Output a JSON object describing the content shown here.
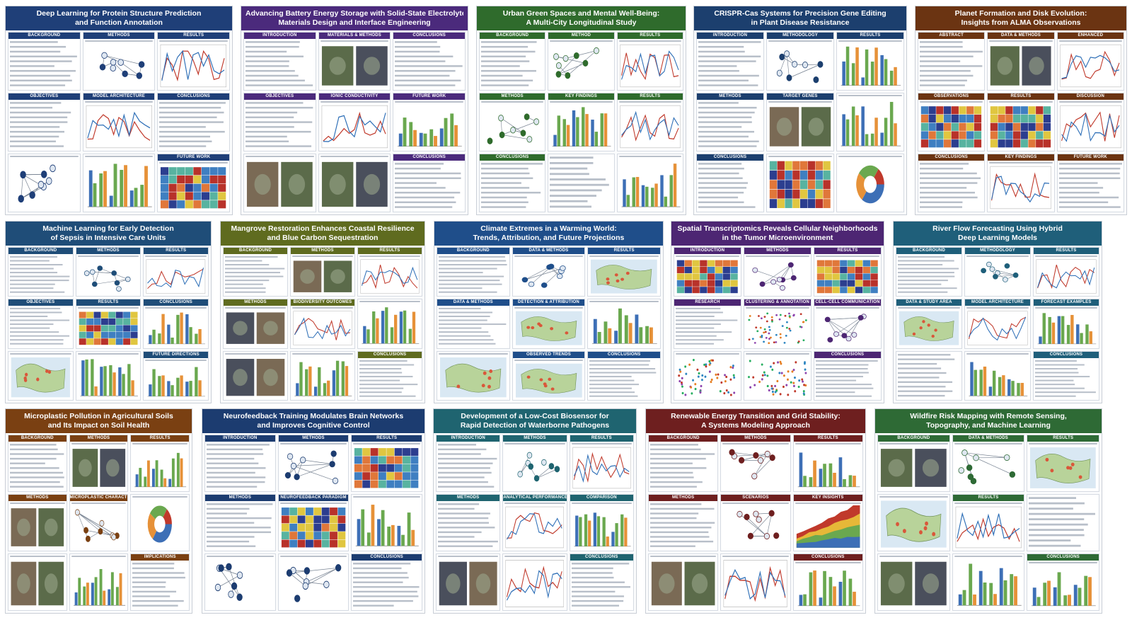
{
  "posters": [
    {
      "title_lines": [
        "Deep Learning for Protein Structure Prediction",
        "and Function Annotation"
      ],
      "color": "#1f3f78",
      "columns": [
        [
          {
            "h": "BACKGROUND",
            "f": "text"
          },
          {
            "h": "OBJECTIVES",
            "f": "text"
          },
          {
            "h": "",
            "f": "network"
          }
        ],
        [
          {
            "h": "METHODS",
            "f": "network"
          },
          {
            "h": "MODEL ARCHITECTURE",
            "f": "line"
          },
          {
            "h": "",
            "f": "bar"
          }
        ],
        [
          {
            "h": "RESULTS",
            "f": "line"
          },
          {
            "h": "CONCLUSIONS",
            "f": "text"
          },
          {
            "h": "FUTURE WORK",
            "f": "heat"
          }
        ]
      ]
    },
    {
      "title_lines": [
        "Advancing Battery Energy Storage with Solid-State Electrolytes:",
        "Materials Design and Interface Engineering"
      ],
      "color": "#4b2a7c",
      "columns": [
        [
          {
            "h": "INTRODUCTION",
            "f": "text"
          },
          {
            "h": "OBJECTIVES",
            "f": "text"
          },
          {
            "h": "",
            "f": "photo"
          }
        ],
        [
          {
            "h": "MATERIALS & METHODS",
            "f": "photo"
          },
          {
            "h": "IONIC CONDUCTIVITY",
            "f": "line"
          },
          {
            "h": "",
            "f": "photo"
          }
        ],
        [
          {
            "h": "CONCLUSIONS",
            "f": "text"
          },
          {
            "h": "FUTURE WORK",
            "f": "bar"
          },
          {
            "h": "CONCLUSIONS",
            "f": "text"
          }
        ]
      ]
    },
    {
      "title_lines": [
        "Urban Green Spaces and Mental Well-Being:",
        "A Multi-City Longitudinal Study"
      ],
      "color": "#2f6b2c",
      "columns": [
        [
          {
            "h": "BACKGROUND",
            "f": "text"
          },
          {
            "h": "METHODS",
            "f": "network"
          },
          {
            "h": "CONCLUSIONS",
            "f": "text"
          }
        ],
        [
          {
            "h": "METHOD",
            "f": "network"
          },
          {
            "h": "KEY FINDINGS",
            "f": "bar"
          },
          {
            "h": "",
            "f": "text"
          }
        ],
        [
          {
            "h": "RESULTS",
            "f": "line"
          },
          {
            "h": "RESULTS",
            "f": "line"
          },
          {
            "h": "",
            "f": "bar"
          }
        ]
      ]
    },
    {
      "title_lines": [
        "CRISPR-Cas Systems for Precision Gene Editing",
        "in Plant Disease Resistance"
      ],
      "color": "#1c3f6e",
      "columns": [
        [
          {
            "h": "INTRODUCTION",
            "f": "text"
          },
          {
            "h": "METHODS",
            "f": "text"
          },
          {
            "h": "CONCLUSIONS",
            "f": "text"
          }
        ],
        [
          {
            "h": "METHODOLOGY",
            "f": "network"
          },
          {
            "h": "TARGET GENES",
            "f": "photo"
          },
          {
            "h": "",
            "f": "heat"
          }
        ],
        [
          {
            "h": "RESULTS",
            "f": "bar"
          },
          {
            "h": "",
            "f": "bar"
          },
          {
            "h": "",
            "f": "donut"
          }
        ]
      ]
    },
    {
      "title_lines": [
        "Planet Formation and Disk Evolution:",
        "Insights from ALMA Observations"
      ],
      "color": "#6b3412",
      "columns": [
        [
          {
            "h": "ABSTRACT",
            "f": "text"
          },
          {
            "h": "OBSERVATIONS",
            "f": "heat"
          },
          {
            "h": "CONCLUSIONS",
            "f": "text"
          }
        ],
        [
          {
            "h": "DATA & METHODS",
            "f": "photo"
          },
          {
            "h": "RESULTS",
            "f": "heat"
          },
          {
            "h": "KEY FINDINGS",
            "f": "line"
          }
        ],
        [
          {
            "h": "ENHANCED",
            "f": "line"
          },
          {
            "h": "DISCUSSION",
            "f": "line"
          },
          {
            "h": "FUTURE WORK",
            "f": "text"
          }
        ]
      ]
    },
    {
      "title_lines": [
        "Machine Learning for Early Detection",
        "of Sepsis in Intensive Care Units"
      ],
      "color": "#1f4d78",
      "columns": [
        [
          {
            "h": "BACKGROUND",
            "f": "text"
          },
          {
            "h": "OBJECTIVES",
            "f": "text"
          },
          {
            "h": "",
            "f": "map"
          }
        ],
        [
          {
            "h": "METHODS",
            "f": "network"
          },
          {
            "h": "RESULTS",
            "f": "heat"
          },
          {
            "h": "",
            "f": "bar"
          }
        ],
        [
          {
            "h": "RESULTS",
            "f": "line"
          },
          {
            "h": "CONCLUSIONS",
            "f": "bar"
          },
          {
            "h": "FUTURE DIRECTIONS",
            "f": "bar"
          }
        ]
      ]
    },
    {
      "title_lines": [
        "Mangrove Restoration Enhances Coastal Resilience",
        "and Blue Carbon Sequestration"
      ],
      "color": "#5f6b1f",
      "columns": [
        [
          {
            "h": "BACKGROUND",
            "f": "text"
          },
          {
            "h": "METHODS",
            "f": "photo"
          },
          {
            "h": "",
            "f": "photo"
          }
        ],
        [
          {
            "h": "METHODS",
            "f": "photo"
          },
          {
            "h": "BIODIVERSITY OUTCOMES",
            "f": "line"
          },
          {
            "h": "",
            "f": "bar"
          }
        ],
        [
          {
            "h": "RESULTS",
            "f": "line"
          },
          {
            "h": "",
            "f": "bar"
          },
          {
            "h": "CONCLUSIONS",
            "f": "text"
          }
        ]
      ]
    },
    {
      "title_lines": [
        "Climate Extremes in a Warming World:",
        "Trends, Attribution, and Future Projections"
      ],
      "color": "#1f4e8a",
      "columns": [
        [
          {
            "h": "BACKGROUND",
            "f": "text"
          },
          {
            "h": "DATA & METHODS",
            "f": "text"
          },
          {
            "h": "",
            "f": "map"
          }
        ],
        [
          {
            "h": "DATA & METHODS",
            "f": "network"
          },
          {
            "h": "DETECTION & ATTRIBUTION",
            "f": "map"
          },
          {
            "h": "OBSERVED TRENDS",
            "f": "map"
          }
        ],
        [
          {
            "h": "RESULTS",
            "f": "map"
          },
          {
            "h": "",
            "f": "bar"
          },
          {
            "h": "CONCLUSIONS",
            "f": "text"
          }
        ]
      ]
    },
    {
      "title_lines": [
        "Spatial Transcriptomics Reveals Cellular Neighborhoods",
        "in the Tumor Microenvironment"
      ],
      "color": "#4d2673",
      "columns": [
        [
          {
            "h": "INTRODUCTION",
            "f": "heat"
          },
          {
            "h": "RESEARCH",
            "f": "text"
          },
          {
            "h": "",
            "f": "scatter"
          }
        ],
        [
          {
            "h": "METHODS",
            "f": "network"
          },
          {
            "h": "CLUSTERING & ANNOTATION",
            "f": "scatter"
          },
          {
            "h": "",
            "f": "scatter"
          }
        ],
        [
          {
            "h": "RESULTS",
            "f": "heat"
          },
          {
            "h": "CELL-CELL COMMUNICATION",
            "f": "network"
          },
          {
            "h": "CONCLUSIONS",
            "f": "text"
          }
        ]
      ]
    },
    {
      "title_lines": [
        "River Flow Forecasting Using Hybrid",
        "Deep Learning Models"
      ],
      "color": "#1f5f7a",
      "columns": [
        [
          {
            "h": "BACKGROUND",
            "f": "text"
          },
          {
            "h": "DATA & STUDY AREA",
            "f": "map"
          },
          {
            "h": "",
            "f": "text"
          }
        ],
        [
          {
            "h": "METHODOLOGY",
            "f": "network"
          },
          {
            "h": "MODEL ARCHITECTURE",
            "f": "line"
          },
          {
            "h": "",
            "f": "bar"
          }
        ],
        [
          {
            "h": "RESULTS",
            "f": "line"
          },
          {
            "h": "FORECAST EXAMPLES",
            "f": "bar"
          },
          {
            "h": "CONCLUSIONS",
            "f": "text"
          }
        ]
      ]
    },
    {
      "title_lines": [
        "Microplastic Pollution in Agricultural Soils",
        "and Its Impact on Soil Health"
      ],
      "color": "#7a4012",
      "columns": [
        [
          {
            "h": "BACKGROUND",
            "f": "text"
          },
          {
            "h": "METHODS",
            "f": "photo"
          },
          {
            "h": "",
            "f": "photo"
          }
        ],
        [
          {
            "h": "METHODS",
            "f": "photo"
          },
          {
            "h": "MICROPLASTIC CHARACTERIZATION",
            "f": "network"
          },
          {
            "h": "",
            "f": "bar"
          }
        ],
        [
          {
            "h": "RESULTS",
            "f": "bar"
          },
          {
            "h": "",
            "f": "donut"
          },
          {
            "h": "IMPLICATIONS",
            "f": "text"
          }
        ]
      ]
    },
    {
      "title_lines": [
        "Neurofeedback Training Modulates Brain Networks",
        "and Improves Cognitive Control"
      ],
      "color": "#1c3c70",
      "columns": [
        [
          {
            "h": "INTRODUCTION",
            "f": "text"
          },
          {
            "h": "METHODS",
            "f": "text"
          },
          {
            "h": "",
            "f": "network"
          }
        ],
        [
          {
            "h": "METHODS",
            "f": "network"
          },
          {
            "h": "NEUROFEEDBACK PARADIGM",
            "f": "heat"
          },
          {
            "h": "",
            "f": "network"
          }
        ],
        [
          {
            "h": "RESULTS",
            "f": "heat"
          },
          {
            "h": "",
            "f": "bar"
          },
          {
            "h": "CONCLUSIONS",
            "f": "text"
          }
        ]
      ]
    },
    {
      "title_lines": [
        "Development of a Low-Cost Biosensor for",
        "Rapid Detection of Waterborne Pathogens"
      ],
      "color": "#1f6470",
      "columns": [
        [
          {
            "h": "INTRODUCTION",
            "f": "text"
          },
          {
            "h": "METHODS",
            "f": "text"
          },
          {
            "h": "",
            "f": "photo"
          }
        ],
        [
          {
            "h": "METHODS",
            "f": "network"
          },
          {
            "h": "ANALYTICAL PERFORMANCE",
            "f": "line"
          },
          {
            "h": "",
            "f": "line"
          }
        ],
        [
          {
            "h": "RESULTS",
            "f": "line"
          },
          {
            "h": "COMPARISON",
            "f": "bar"
          },
          {
            "h": "CONCLUSIONS",
            "f": "text"
          }
        ]
      ]
    },
    {
      "title_lines": [
        "Renewable Energy Transition and Grid Stability:",
        "A Systems Modeling Approach"
      ],
      "color": "#6e1f1f",
      "columns": [
        [
          {
            "h": "BACKGROUND",
            "f": "text"
          },
          {
            "h": "METHODS",
            "f": "text"
          },
          {
            "h": "",
            "f": "photo"
          }
        ],
        [
          {
            "h": "METHODS",
            "f": "network"
          },
          {
            "h": "SCENARIOS",
            "f": "network"
          },
          {
            "h": "",
            "f": "line"
          }
        ],
        [
          {
            "h": "RESULTS",
            "f": "bar"
          },
          {
            "h": "KEY INSIGHTS",
            "f": "area"
          },
          {
            "h": "CONCLUSIONS",
            "f": "bar"
          }
        ]
      ]
    },
    {
      "title_lines": [
        "Wildfire Risk Mapping with Remote Sensing,",
        "Topography, and Machine Learning"
      ],
      "color": "#2e6a35",
      "columns": [
        [
          {
            "h": "BACKGROUND",
            "f": "photo"
          },
          {
            "h": "",
            "f": "map"
          },
          {
            "h": "",
            "f": "photo"
          }
        ],
        [
          {
            "h": "DATA & METHODS",
            "f": "network"
          },
          {
            "h": "RESULTS",
            "f": "line"
          },
          {
            "h": "",
            "f": "bar"
          }
        ],
        [
          {
            "h": "RESULTS",
            "f": "map"
          },
          {
            "h": "",
            "f": "text"
          },
          {
            "h": "CONCLUSIONS",
            "f": "bar"
          }
        ]
      ]
    }
  ],
  "palette": {
    "bars": [
      "#3d6fb6",
      "#6aa84f",
      "#e69138",
      "#8e7cc3",
      "#45818e"
    ],
    "lines": [
      "#c0392b",
      "#2e6fb7",
      "#3c9a4a"
    ],
    "photo": [
      "#5b6b4a",
      "#4a4f5c",
      "#7a6a55"
    ]
  }
}
